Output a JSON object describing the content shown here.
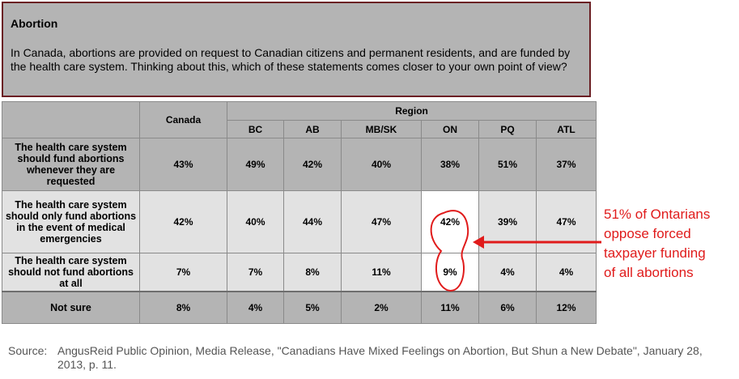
{
  "question": {
    "title": "Abortion",
    "text": "In Canada, abortions are provided on request to Canadian citizens and permanent residents, and are funded by the health care system. Thinking about this, which of these statements comes closer to your own point of view?"
  },
  "table": {
    "canada_header": "Canada",
    "region_header": "Region",
    "regions": [
      "BC",
      "AB",
      "MB/SK",
      "ON",
      "PQ",
      "ATL"
    ],
    "rows": [
      {
        "label": "The health care system should fund abortions whenever they are requested",
        "values": [
          "43%",
          "49%",
          "42%",
          "40%",
          "38%",
          "51%",
          "37%"
        ]
      },
      {
        "label": "The health care system should only fund abortions in the event of medical emergencies",
        "values": [
          "42%",
          "40%",
          "44%",
          "47%",
          "42%",
          "39%",
          "47%"
        ]
      },
      {
        "label": "The health care system should not fund abortions at all",
        "values": [
          "7%",
          "7%",
          "8%",
          "11%",
          "9%",
          "4%",
          "4%"
        ]
      },
      {
        "label": "Not sure",
        "values": [
          "8%",
          "4%",
          "5%",
          "2%",
          "11%",
          "6%",
          "12%"
        ]
      }
    ]
  },
  "annotation": {
    "line1": "51% of Ontarians",
    "line2": "oppose forced",
    "line3": "taxpayer funding",
    "line4": "of all abortions",
    "color": "#e01b1b"
  },
  "source": {
    "label": "Source:",
    "text": "AngusReid Public Opinion, Media Release, \"Canadians Have Mixed Feelings on Abortion, But Shun a New Debate\", January 28, 2013, p. 11."
  }
}
